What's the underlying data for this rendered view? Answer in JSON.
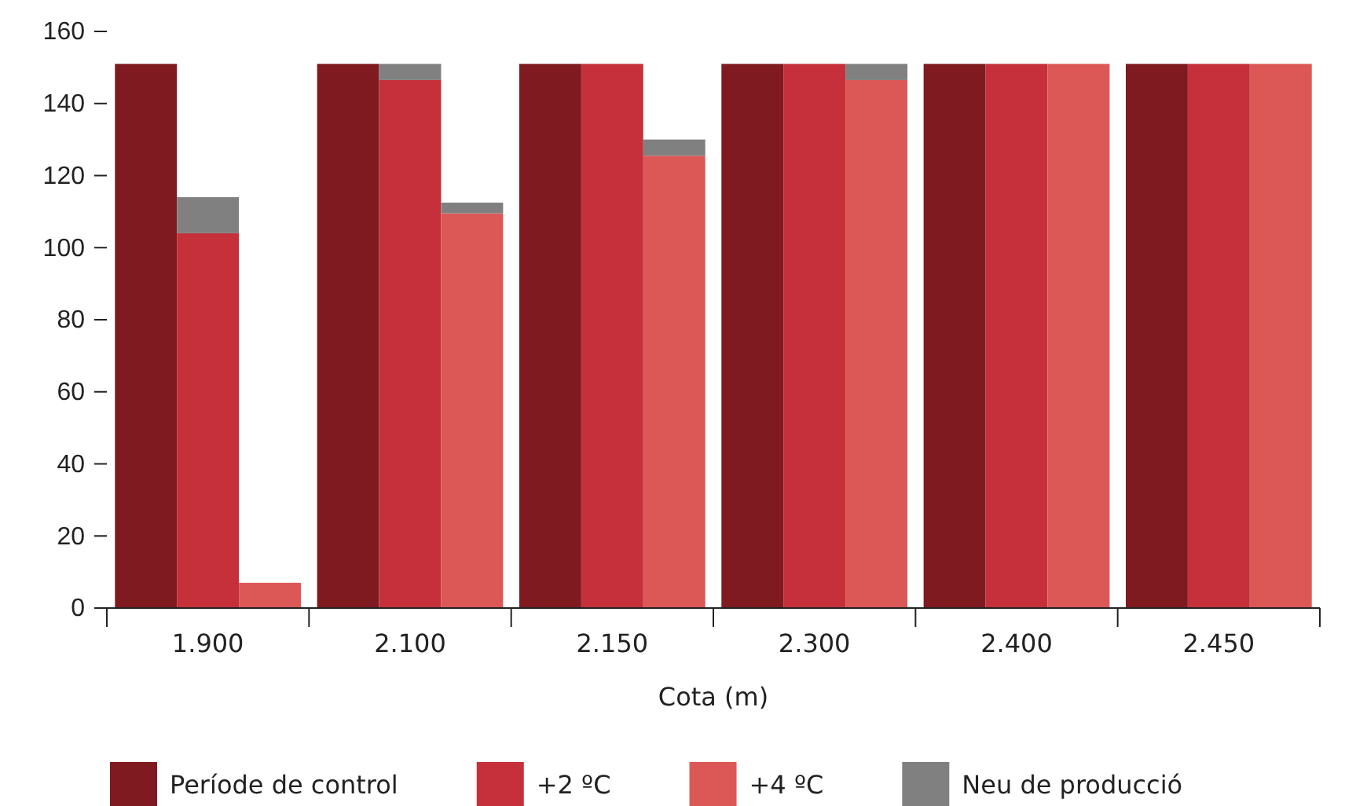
{
  "chart_data": {
    "type": "bar",
    "stacked": true,
    "xlabel": "Cota (m)",
    "categories": [
      null,
      "1.900",
      null,
      null,
      "2.100",
      null,
      null,
      "2.150",
      null,
      null,
      "2.300",
      null,
      null,
      "2.400",
      null,
      null,
      "2.450",
      null
    ],
    "ylim": [
      0,
      160
    ],
    "yticks": [
      0,
      20,
      40,
      60,
      80,
      100,
      120,
      140,
      160
    ],
    "grid": false,
    "legend": "bottom",
    "series": [
      {
        "name": "Període de control",
        "color": "#7f1a21",
        "values": [
          151,
          null,
          null,
          151,
          null,
          null,
          151,
          null,
          null,
          151,
          null,
          null,
          151,
          null,
          null,
          151,
          null,
          null
        ]
      },
      {
        "name": "+2 ºC",
        "color": "#c5303a",
        "values": [
          null,
          104,
          null,
          null,
          146.5,
          null,
          null,
          151,
          null,
          null,
          151,
          null,
          null,
          151,
          null,
          null,
          151,
          null
        ]
      },
      {
        "name": "+4 ºC",
        "color": "#dc5856",
        "values": [
          null,
          null,
          7,
          null,
          null,
          109.5,
          null,
          null,
          125.5,
          null,
          null,
          146.5,
          null,
          null,
          151,
          null,
          null,
          151
        ]
      },
      {
        "name": "Neu de producció",
        "color": "#808080",
        "values": [
          null,
          10,
          null,
          null,
          4.5,
          3,
          null,
          null,
          4.5,
          null,
          null,
          4.5,
          null,
          null,
          null,
          null,
          null,
          null
        ]
      }
    ]
  }
}
